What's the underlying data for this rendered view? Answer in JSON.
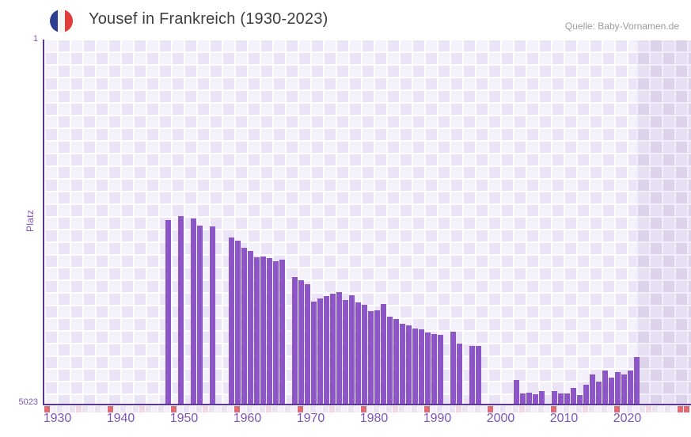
{
  "header": {
    "title": "Yousef in Frankreich (1930-2023)",
    "source": "Quelle: Baby-Vornamen.de",
    "flag": {
      "name": "france-flag-icon",
      "stripes": [
        "#2c3e8f",
        "#f6f5f3",
        "#df3c3a"
      ]
    }
  },
  "axes": {
    "y_label": "Platz",
    "y_top_tick": "1",
    "y_bottom_tick": "5023",
    "x_tick_years": [
      1930,
      1940,
      1950,
      1960,
      1970,
      1980,
      1990,
      2000,
      2010,
      2020
    ]
  },
  "colors": {
    "bar": "#8d56c6",
    "axis_line": "#5a3794",
    "tick_text": "#7e57b5",
    "strip_even": "#eae3f4",
    "strip_odd": "#f3eefa",
    "strip_decade_red": "#e16a74",
    "strip_half_decade_pink": "#f3d7e3"
  },
  "chart_data": {
    "type": "bar",
    "title": "Yousef in Frankreich (1930-2023)",
    "xlabel": "",
    "ylabel": "Platz",
    "x_axis": {
      "first_year": 1930,
      "last_year": 2031,
      "tick_step": 10
    },
    "y_axis": {
      "min": 1,
      "max": 5023,
      "inverted": true,
      "note": "rank 1 at top, bars grow up from rank 5023 baseline"
    },
    "future_region_start_year": 2024,
    "legend": "none",
    "grid": "checkerboard background",
    "points": [
      {
        "year": 1949,
        "rank": 2480
      },
      {
        "year": 1951,
        "rank": 2430
      },
      {
        "year": 1953,
        "rank": 2460
      },
      {
        "year": 1954,
        "rank": 2560
      },
      {
        "year": 1956,
        "rank": 2570
      },
      {
        "year": 1959,
        "rank": 2720
      },
      {
        "year": 1960,
        "rank": 2760
      },
      {
        "year": 1961,
        "rank": 2860
      },
      {
        "year": 1962,
        "rank": 2900
      },
      {
        "year": 1963,
        "rank": 2990
      },
      {
        "year": 1964,
        "rank": 2980
      },
      {
        "year": 1965,
        "rank": 3000
      },
      {
        "year": 1966,
        "rank": 3050
      },
      {
        "year": 1967,
        "rank": 3030
      },
      {
        "year": 1969,
        "rank": 3270
      },
      {
        "year": 1970,
        "rank": 3310
      },
      {
        "year": 1971,
        "rank": 3360
      },
      {
        "year": 1972,
        "rank": 3600
      },
      {
        "year": 1973,
        "rank": 3560
      },
      {
        "year": 1974,
        "rank": 3530
      },
      {
        "year": 1975,
        "rank": 3500
      },
      {
        "year": 1976,
        "rank": 3470
      },
      {
        "year": 1977,
        "rank": 3580
      },
      {
        "year": 1978,
        "rank": 3520
      },
      {
        "year": 1979,
        "rank": 3610
      },
      {
        "year": 1980,
        "rank": 3650
      },
      {
        "year": 1981,
        "rank": 3730
      },
      {
        "year": 1982,
        "rank": 3720
      },
      {
        "year": 1983,
        "rank": 3640
      },
      {
        "year": 1984,
        "rank": 3810
      },
      {
        "year": 1985,
        "rank": 3840
      },
      {
        "year": 1986,
        "rank": 3910
      },
      {
        "year": 1987,
        "rank": 3930
      },
      {
        "year": 1988,
        "rank": 3970
      },
      {
        "year": 1989,
        "rank": 3990
      },
      {
        "year": 1990,
        "rank": 4030
      },
      {
        "year": 1991,
        "rank": 4050
      },
      {
        "year": 1992,
        "rank": 4060
      },
      {
        "year": 1994,
        "rank": 4020
      },
      {
        "year": 1995,
        "rank": 4180
      },
      {
        "year": 1997,
        "rank": 4210
      },
      {
        "year": 1998,
        "rank": 4220
      },
      {
        "year": 2004,
        "rank": 4690
      },
      {
        "year": 2005,
        "rank": 4870
      },
      {
        "year": 2006,
        "rank": 4860
      },
      {
        "year": 2007,
        "rank": 4880
      },
      {
        "year": 2008,
        "rank": 4840
      },
      {
        "year": 2010,
        "rank": 4840
      },
      {
        "year": 2011,
        "rank": 4870
      },
      {
        "year": 2012,
        "rank": 4870
      },
      {
        "year": 2013,
        "rank": 4790
      },
      {
        "year": 2014,
        "rank": 4890
      },
      {
        "year": 2015,
        "rank": 4750
      },
      {
        "year": 2016,
        "rank": 4610
      },
      {
        "year": 2017,
        "rank": 4710
      },
      {
        "year": 2018,
        "rank": 4550
      },
      {
        "year": 2019,
        "rank": 4650
      },
      {
        "year": 2020,
        "rank": 4570
      },
      {
        "year": 2021,
        "rank": 4610
      },
      {
        "year": 2022,
        "rank": 4550
      },
      {
        "year": 2023,
        "rank": 4370
      }
    ]
  }
}
